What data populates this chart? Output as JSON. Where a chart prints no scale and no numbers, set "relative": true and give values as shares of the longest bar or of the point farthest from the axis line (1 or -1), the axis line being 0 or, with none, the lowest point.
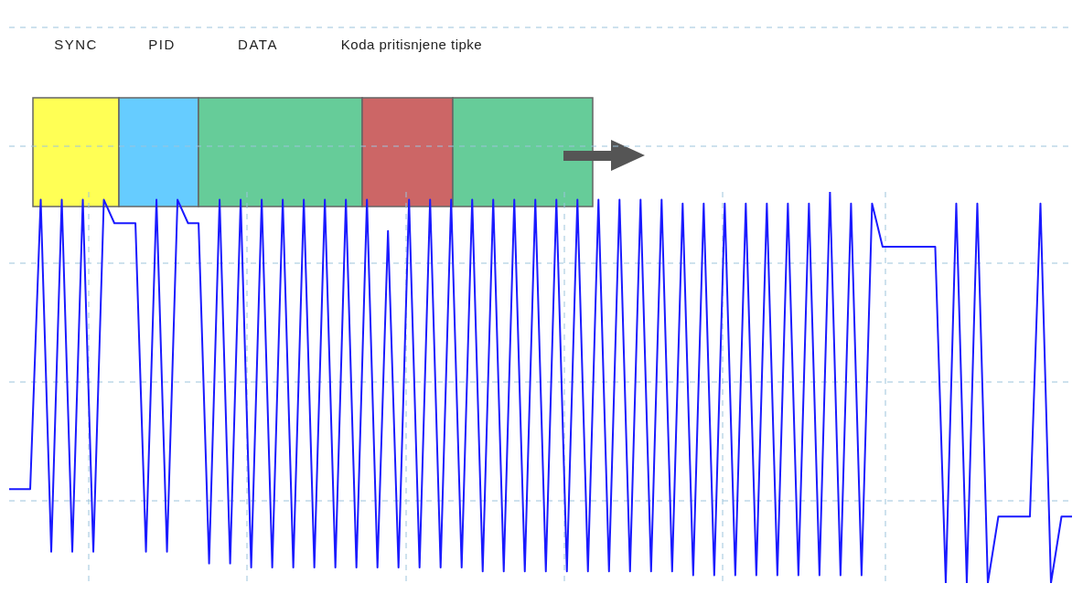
{
  "chart_data": {
    "type": "line",
    "relative": true,
    "grid": true,
    "marker": "none",
    "line_style": "solid",
    "annotations": [
      "SYNC",
      "PID",
      "DATA",
      "Koda pritisnjene tipke"
    ],
    "categories": [
      null,
      null,
      null,
      null,
      null,
      null,
      null,
      null,
      null,
      null,
      null,
      null,
      null,
      null,
      null,
      null,
      null,
      null,
      null,
      null,
      null,
      null,
      null,
      null,
      null,
      null,
      null,
      null,
      null,
      null,
      null,
      null,
      null,
      null,
      null,
      null,
      null,
      null,
      null,
      null,
      null,
      null,
      null,
      null,
      null,
      null,
      null,
      null,
      null,
      null,
      null,
      null,
      null,
      null,
      null,
      null,
      null,
      null,
      null,
      null,
      null,
      null,
      null,
      null,
      null,
      null,
      null,
      null,
      null,
      null,
      null,
      null,
      null,
      null,
      null,
      null,
      null,
      null,
      null,
      null,
      null,
      null,
      null,
      null,
      null,
      null,
      null,
      null,
      null,
      null,
      null,
      null,
      null,
      null,
      null,
      null,
      null,
      null,
      null,
      null,
      null,
      null
    ],
    "series": [
      {
        "color": "#1a1aff",
        "values": [
          0.24,
          0.24,
          0.24,
          0.98,
          0.08,
          0.98,
          0.08,
          0.98,
          0.08,
          0.98,
          0.92,
          0.92,
          0.92,
          0.08,
          0.98,
          0.08,
          0.98,
          0.92,
          0.92,
          0.05,
          0.98,
          0.05,
          0.98,
          0.04,
          0.98,
          0.04,
          0.98,
          0.04,
          0.98,
          0.04,
          0.98,
          0.04,
          0.98,
          0.04,
          0.98,
          0.04,
          0.9,
          0.04,
          0.98,
          0.04,
          0.98,
          0.04,
          0.98,
          0.04,
          0.98,
          0.03,
          0.98,
          0.03,
          0.98,
          0.03,
          0.98,
          0.03,
          0.98,
          0.03,
          0.98,
          0.03,
          0.98,
          0.03,
          0.98,
          0.03,
          0.98,
          0.03,
          0.98,
          0.03,
          0.97,
          0.02,
          0.97,
          0.02,
          0.97,
          0.02,
          0.97,
          0.02,
          0.97,
          0.02,
          0.97,
          0.02,
          0.97,
          0.02,
          1,
          0.02,
          0.97,
          0.02,
          0.97,
          0.86,
          0.86,
          0.86,
          0.86,
          0.86,
          0.86,
          0,
          0.97,
          0,
          0.97,
          0,
          0.17,
          0.17,
          0.17,
          0.17,
          0.97,
          0,
          0.17,
          0.17
        ]
      }
    ]
  }
}
